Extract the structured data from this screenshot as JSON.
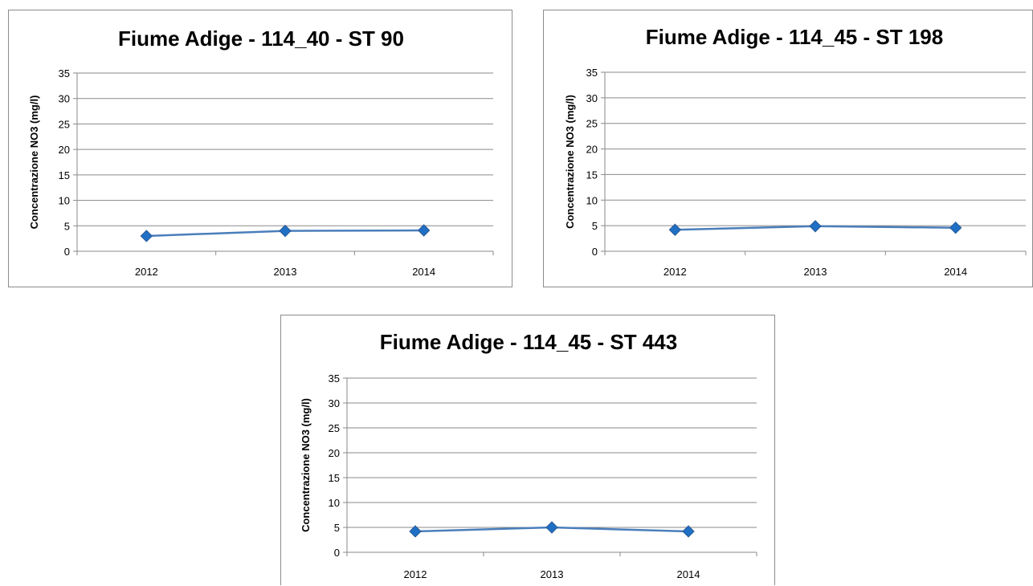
{
  "chart_data": [
    {
      "type": "line",
      "title": "Fiume Adige - 114_40 - ST 90",
      "xlabel": "",
      "ylabel": "Concentrazione NO3 (mg/l)",
      "categories": [
        "2012",
        "2013",
        "2014"
      ],
      "series": [
        {
          "values": [
            3.0,
            4.0,
            4.1
          ]
        }
      ],
      "ylim": [
        0,
        35
      ],
      "yticks": [
        "0",
        "5",
        "10",
        "15",
        "20",
        "25",
        "30",
        "35"
      ],
      "grid": true,
      "legend": "none",
      "color": "#4a7ebb",
      "marker_color": "#1f6fc5"
    },
    {
      "type": "line",
      "title": "Fiume Adige - 114_45 - ST 198",
      "xlabel": "",
      "ylabel": "Concentrazione NO3 (mg/l)",
      "categories": [
        "2012",
        "2013",
        "2014"
      ],
      "series": [
        {
          "values": [
            4.2,
            4.9,
            4.6
          ]
        }
      ],
      "ylim": [
        0,
        35
      ],
      "yticks": [
        "0",
        "5",
        "10",
        "15",
        "20",
        "25",
        "30",
        "35"
      ],
      "grid": true,
      "legend": "none",
      "color": "#4a7ebb",
      "marker_color": "#1f6fc5"
    },
    {
      "type": "line",
      "title": "Fiume Adige - 114_45 - ST 443",
      "xlabel": "",
      "ylabel": "Concentrazione NO3 (mg/l)",
      "categories": [
        "2012",
        "2013",
        "2014"
      ],
      "series": [
        {
          "values": [
            4.2,
            5.0,
            4.2
          ]
        }
      ],
      "ylim": [
        0,
        35
      ],
      "yticks": [
        "0",
        "5",
        "10",
        "15",
        "20",
        "25",
        "30",
        "35"
      ],
      "grid": true,
      "legend": "none",
      "color": "#4a7ebb",
      "marker_color": "#1f6fc5"
    }
  ]
}
